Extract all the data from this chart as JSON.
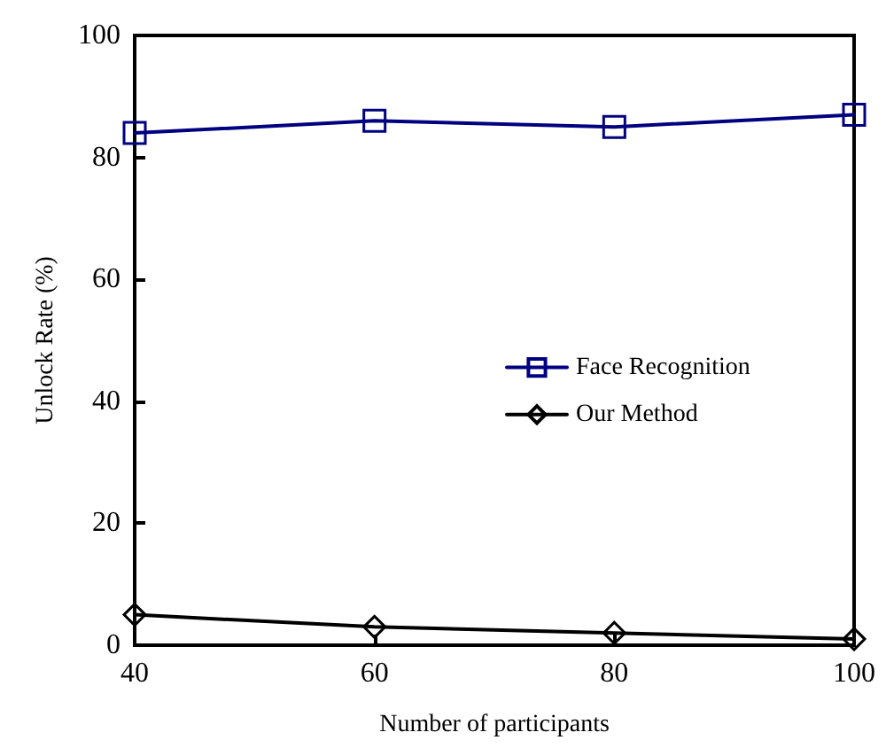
{
  "chart_data": {
    "type": "line",
    "xlabel": "Number of participants",
    "ylabel": "Unlock Rate (%)",
    "x": [
      40,
      60,
      80,
      100
    ],
    "series": [
      {
        "name": "Face Recognition",
        "color": "#000080",
        "values": [
          84,
          86,
          85,
          87
        ],
        "marker": "square"
      },
      {
        "name": "Our Method",
        "color": "#000000",
        "values": [
          5,
          3,
          2,
          1
        ],
        "marker": "diamond"
      }
    ],
    "xlim": [
      40,
      100
    ],
    "xticks": [
      40,
      60,
      80,
      100
    ],
    "ylim": [
      0,
      100
    ],
    "yticks": [
      0,
      20,
      40,
      60,
      80,
      100
    ],
    "grid": false,
    "legend": "right",
    "line_style": "solid"
  }
}
